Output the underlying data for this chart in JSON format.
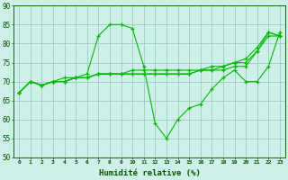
{
  "xlabel": "Humidité relative (%)",
  "background_color": "#cff0e8",
  "grid_color": "#99ccbb",
  "line_color": "#00bb00",
  "xlim": [
    -0.5,
    23.5
  ],
  "ylim": [
    50,
    90
  ],
  "yticks": [
    50,
    55,
    60,
    65,
    70,
    75,
    80,
    85,
    90
  ],
  "xticks": [
    0,
    1,
    2,
    3,
    4,
    5,
    6,
    7,
    8,
    9,
    10,
    11,
    12,
    13,
    14,
    15,
    16,
    17,
    18,
    19,
    20,
    21,
    22,
    23
  ],
  "series": [
    [
      67,
      70,
      69,
      70,
      71,
      71,
      72,
      82,
      85,
      85,
      84,
      74,
      59,
      55,
      60,
      63,
      64,
      68,
      71,
      73,
      70,
      70,
      74,
      83
    ],
    [
      67,
      70,
      69,
      70,
      70,
      71,
      71,
      72,
      72,
      72,
      72,
      72,
      72,
      72,
      72,
      72,
      73,
      73,
      73,
      74,
      74,
      78,
      82,
      82
    ],
    [
      67,
      70,
      69,
      70,
      70,
      71,
      71,
      72,
      72,
      72,
      72,
      72,
      72,
      72,
      72,
      72,
      73,
      73,
      74,
      75,
      75,
      78,
      83,
      82
    ],
    [
      67,
      70,
      69,
      70,
      70,
      71,
      71,
      72,
      72,
      72,
      73,
      73,
      73,
      73,
      73,
      73,
      73,
      74,
      74,
      75,
      76,
      79,
      83,
      82
    ]
  ]
}
